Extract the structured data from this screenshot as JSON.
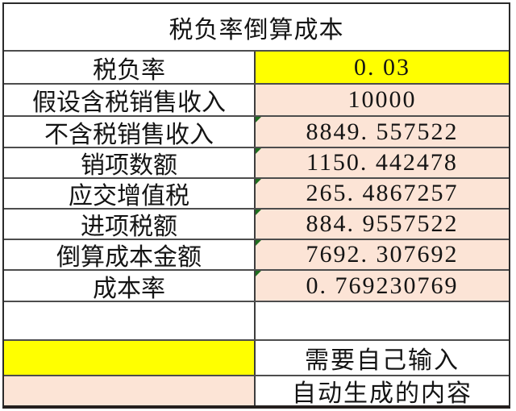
{
  "table": {
    "title": "税负率倒算成本",
    "rows": [
      {
        "label": "税负率",
        "value": "0. 03",
        "fill": "#ffff00",
        "input_required": true,
        "error_indicator": false
      },
      {
        "label": "假设含税销售收入",
        "value": "10000",
        "fill": "#fce4d6",
        "input_required": false,
        "error_indicator": false
      },
      {
        "label": "不含税销售收入",
        "value": "8849. 557522",
        "fill": "#fce4d6",
        "input_required": false,
        "error_indicator": true
      },
      {
        "label": "销项数额",
        "value": "1150. 442478",
        "fill": "#fce4d6",
        "input_required": false,
        "error_indicator": true
      },
      {
        "label": "应交增值税",
        "value": "265. 4867257",
        "fill": "#fce4d6",
        "input_required": false,
        "error_indicator": true
      },
      {
        "label": "进项税额",
        "value": "884. 9557522",
        "fill": "#fce4d6",
        "input_required": false,
        "error_indicator": true
      },
      {
        "label": "倒算成本金额",
        "value": "7692. 307692",
        "fill": "#fce4d6",
        "input_required": false,
        "error_indicator": true
      },
      {
        "label": "成本率",
        "value": "0. 769230769",
        "fill": "#fce4d6",
        "input_required": false,
        "error_indicator": true
      }
    ],
    "legend": [
      {
        "swatch_color": "#ffff00",
        "label": "需要自己输入"
      },
      {
        "swatch_color": "#fce4d6",
        "label": "自动生成的内容"
      }
    ]
  },
  "colors": {
    "manual_input_fill": "#ffff00",
    "auto_generated_fill": "#fce4d6",
    "grid_line": "#4d4d4d",
    "outer_border": "#2a2a2a",
    "error_indicator_green": "#1e6e1e",
    "text": "#141414"
  }
}
